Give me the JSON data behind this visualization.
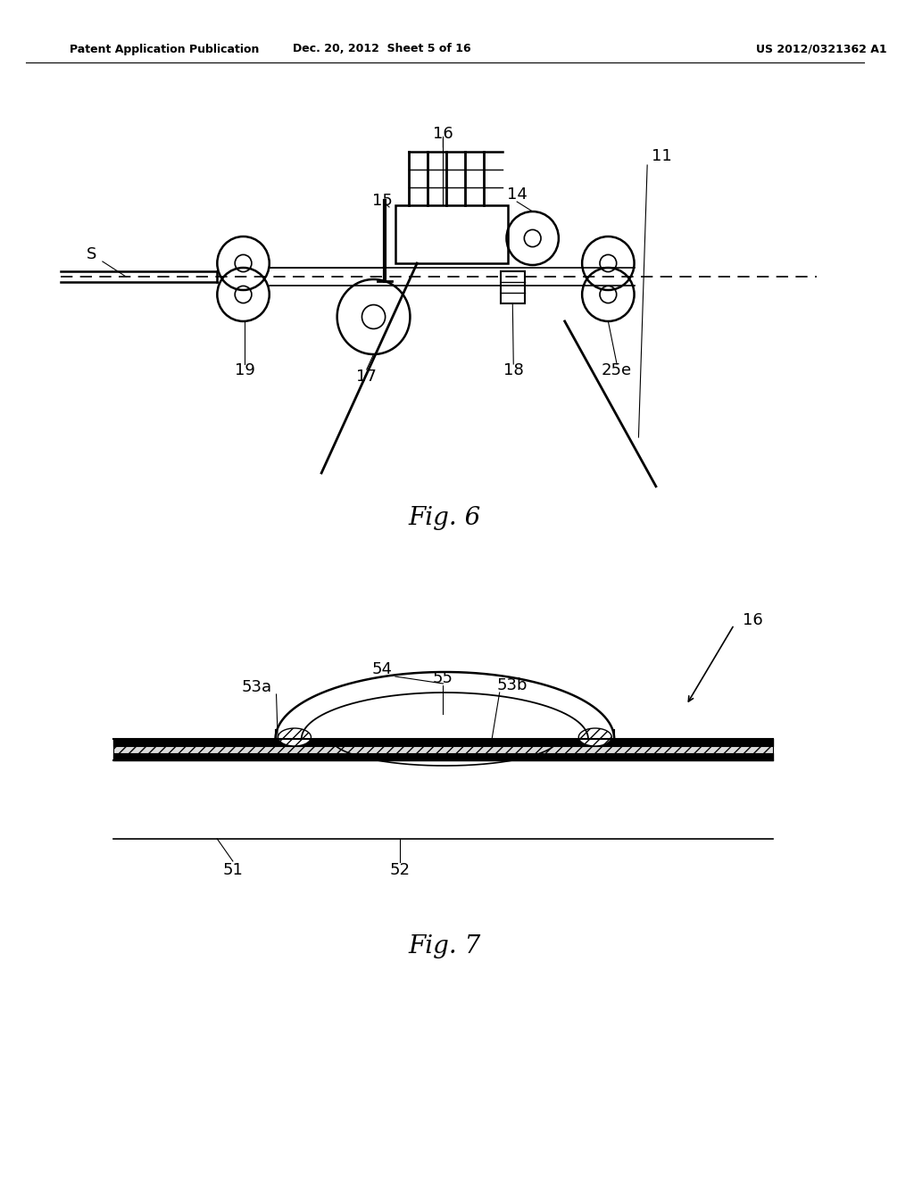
{
  "bg_color": "#ffffff",
  "header_left": "Patent Application Publication",
  "header_mid": "Dec. 20, 2012  Sheet 5 of 16",
  "header_right": "US 2012/0321362 A1",
  "fig6_title": "Fig. 6",
  "fig7_title": "Fig. 7"
}
